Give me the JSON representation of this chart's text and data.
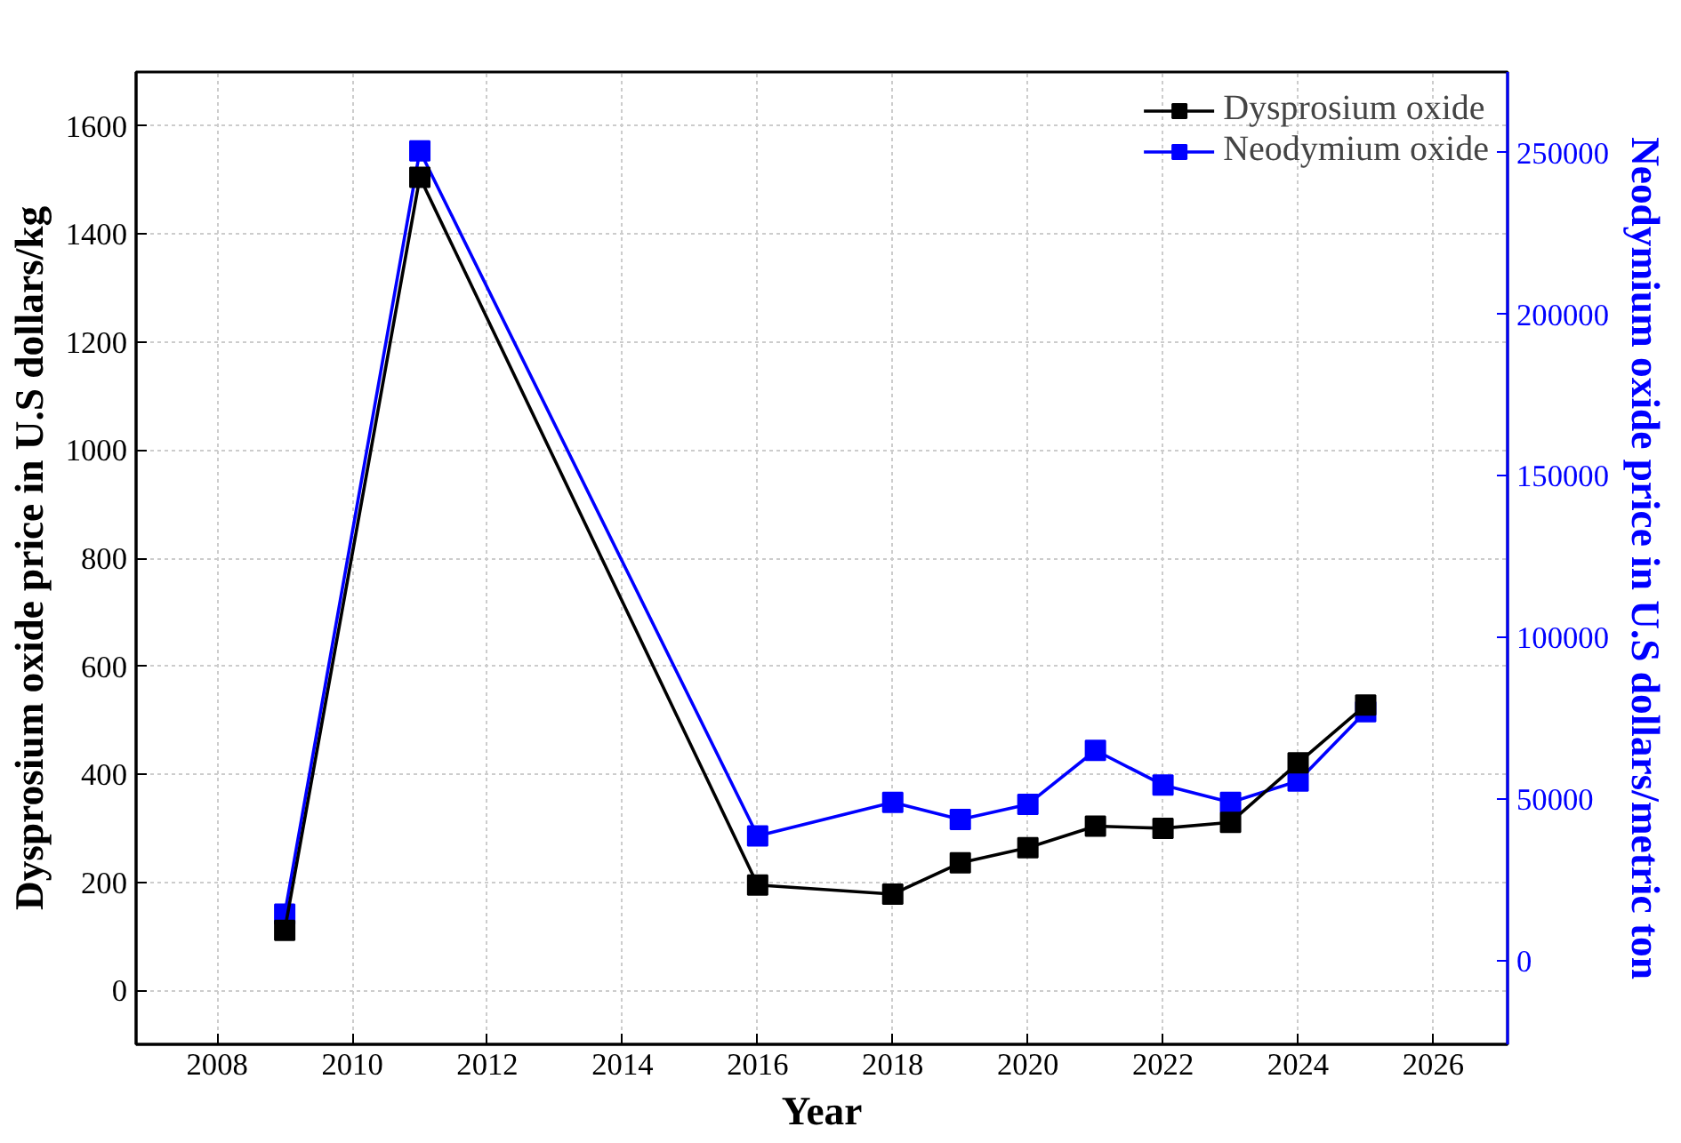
{
  "chart_data": {
    "type": "line",
    "xlabel": "Year",
    "ylabel": "Dysprosium oxide price in U.S dollars/kg",
    "y2label": "Neodymium oxide price in U.S dollars/metric ton",
    "x": [
      2009,
      2011,
      2016,
      2018,
      2019,
      2020,
      2021,
      2022,
      2023,
      2024,
      2025
    ],
    "series": [
      {
        "name": "Dysprosium oxide",
        "color": "#000000",
        "values": [
          111,
          1505,
          195,
          178,
          236,
          264,
          304,
          300,
          311,
          421,
          528
        ]
      },
      {
        "name": "Neodymium oxide",
        "color": "#0000ff",
        "axis": "y2",
        "values": [
          14300,
          250600,
          38500,
          48900,
          43600,
          48300,
          65000,
          54300,
          48900,
          55500,
          77000
        ]
      }
    ],
    "xlim": [
      2006.8,
      2027.1
    ],
    "xticks": [
      2008,
      2010,
      2012,
      2014,
      2016,
      2018,
      2020,
      2022,
      2024,
      2026
    ],
    "ylim": [
      -100,
      1700
    ],
    "yticks": [
      0,
      200,
      400,
      600,
      800,
      1000,
      1200,
      1400,
      1600
    ],
    "y2lim": [
      -26000,
      275000
    ],
    "y2ticks": [
      0,
      50000,
      100000,
      150000,
      200000,
      250000
    ],
    "grid": true,
    "legend": "top right",
    "marker": "square",
    "line_style": "solid"
  }
}
